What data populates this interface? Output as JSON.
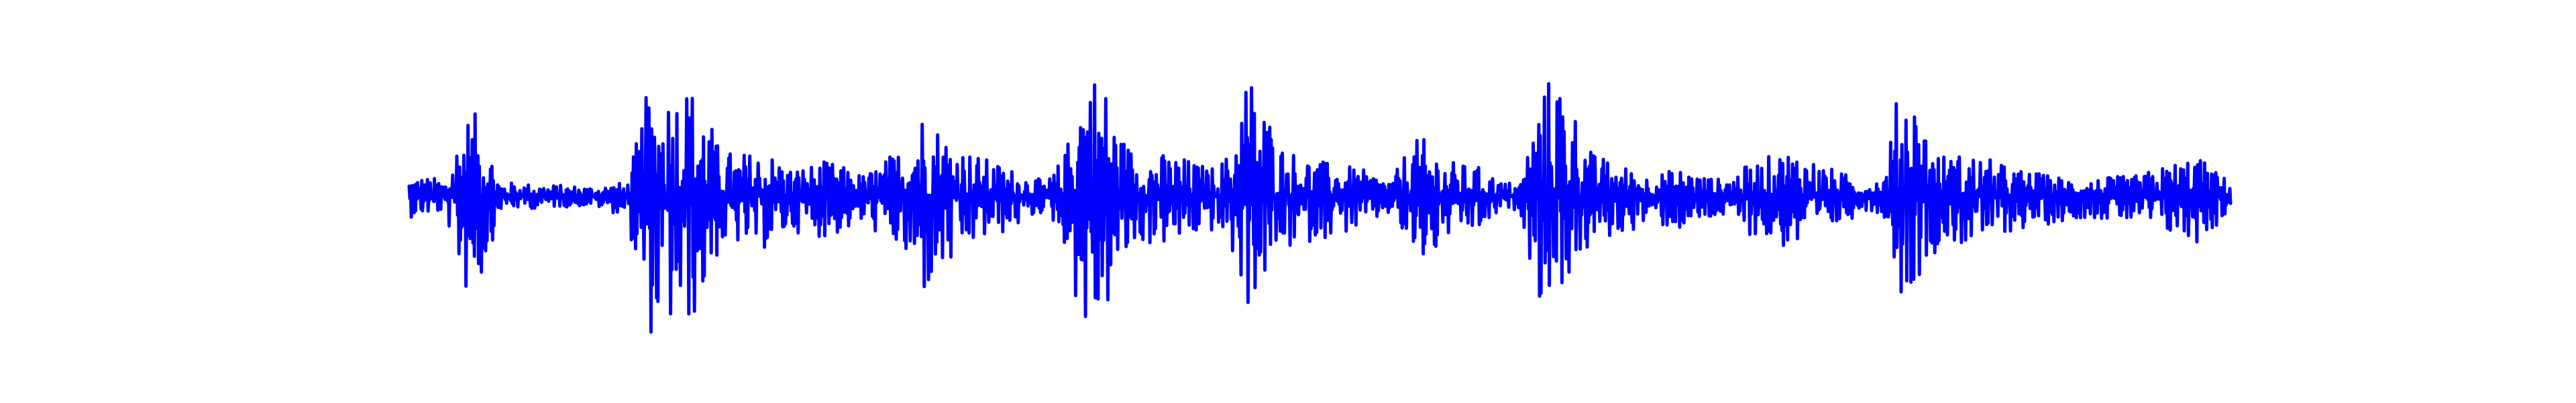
{
  "chart_data": {
    "type": "line",
    "title": "",
    "xlabel": "",
    "ylabel": "",
    "axes_visible": false,
    "grid": false,
    "legend": "none",
    "x_range": [
      0,
      1
    ],
    "ylim": [
      -1,
      1
    ],
    "series_color": "#0000ff",
    "background_color": "#ffffff",
    "envelope": {
      "x": [
        0.0,
        0.02,
        0.03,
        0.04,
        0.05,
        0.08,
        0.1,
        0.12,
        0.13,
        0.14,
        0.15,
        0.16,
        0.17,
        0.18,
        0.19,
        0.2,
        0.21,
        0.23,
        0.25,
        0.27,
        0.28,
        0.3,
        0.31,
        0.33,
        0.35,
        0.36,
        0.37,
        0.38,
        0.39,
        0.4,
        0.42,
        0.44,
        0.45,
        0.46,
        0.48,
        0.5,
        0.52,
        0.54,
        0.55,
        0.56,
        0.57,
        0.59,
        0.6,
        0.61,
        0.62,
        0.63,
        0.65,
        0.67,
        0.68,
        0.7,
        0.71,
        0.72,
        0.74,
        0.76,
        0.78,
        0.8,
        0.81,
        0.82,
        0.83,
        0.84,
        0.86,
        0.88,
        0.9,
        0.92,
        0.95,
        0.97,
        0.98,
        0.99,
        1.0
      ],
      "upper": [
        0.15,
        0.12,
        0.6,
        0.57,
        0.1,
        0.08,
        0.07,
        0.1,
        0.7,
        0.78,
        0.85,
        0.75,
        0.35,
        0.3,
        0.32,
        0.3,
        0.2,
        0.25,
        0.15,
        0.35,
        0.65,
        0.4,
        0.3,
        0.2,
        0.1,
        0.3,
        0.95,
        0.9,
        0.45,
        0.3,
        0.3,
        0.2,
        0.3,
        0.95,
        0.35,
        0.25,
        0.2,
        0.12,
        0.4,
        0.4,
        0.25,
        0.2,
        0.1,
        0.1,
        0.7,
        0.95,
        0.3,
        0.2,
        0.15,
        0.2,
        0.15,
        0.12,
        0.25,
        0.35,
        0.2,
        0.1,
        0.15,
        0.95,
        0.6,
        0.3,
        0.3,
        0.2,
        0.15,
        0.12,
        0.15,
        0.25,
        0.3,
        0.2,
        0.1
      ],
      "lower": [
        -0.15,
        -0.12,
        -0.7,
        -0.6,
        -0.1,
        -0.08,
        -0.07,
        -0.15,
        -1.0,
        -0.95,
        -1.0,
        -0.8,
        -0.4,
        -0.35,
        -0.4,
        -0.35,
        -0.25,
        -0.3,
        -0.2,
        -0.4,
        -0.75,
        -0.5,
        -0.35,
        -0.25,
        -0.1,
        -0.35,
        -1.0,
        -0.95,
        -0.55,
        -0.35,
        -0.35,
        -0.25,
        -0.35,
        -0.8,
        -0.4,
        -0.3,
        -0.25,
        -0.12,
        -0.45,
        -0.5,
        -0.3,
        -0.25,
        -0.1,
        -0.1,
        -0.75,
        -0.7,
        -0.35,
        -0.25,
        -0.2,
        -0.25,
        -0.2,
        -0.15,
        -0.3,
        -0.4,
        -0.25,
        -0.1,
        -0.15,
        -0.75,
        -0.55,
        -0.35,
        -0.35,
        -0.25,
        -0.2,
        -0.15,
        -0.2,
        -0.3,
        -0.35,
        -0.25,
        -0.1
      ]
    }
  }
}
